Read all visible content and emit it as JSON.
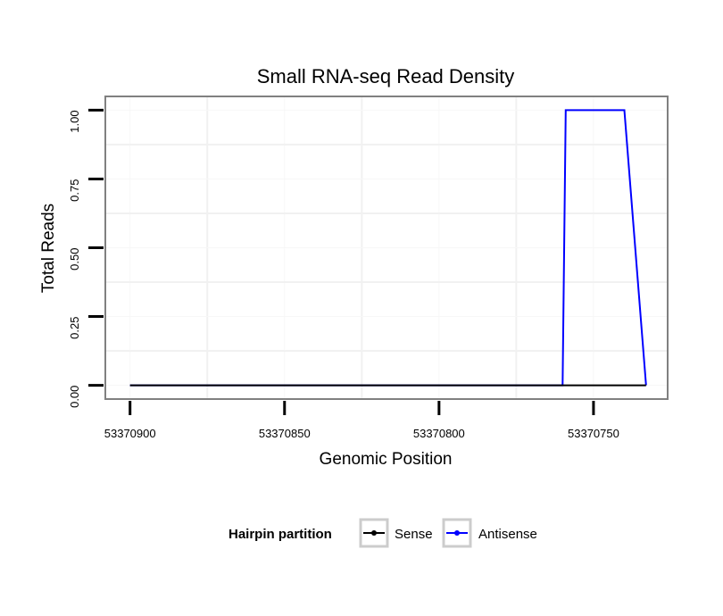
{
  "chart_data": {
    "type": "line",
    "title": "Small RNA-seq Read Density",
    "xlabel": "Genomic Position",
    "ylabel": "Total Reads",
    "x_reversed": true,
    "xlim": [
      53370908,
      53370726
    ],
    "ylim": [
      -0.05,
      1.05
    ],
    "x_ticks": [
      53370900,
      53370850,
      53370800,
      53370750
    ],
    "x_tick_labels": [
      "53370900",
      "53370850",
      "53370800",
      "53370750"
    ],
    "y_ticks": [
      0,
      0.25,
      0.5,
      0.75,
      1.0
    ],
    "y_tick_labels": [
      "0.00",
      "0.25",
      "0.50",
      "0.75",
      "1.00"
    ],
    "grid": true,
    "legend": {
      "title": "Hairpin partition",
      "position": "bottom",
      "entries": [
        "Sense",
        "Antisense"
      ]
    },
    "series": [
      {
        "name": "Sense",
        "color": "#000000",
        "x": [
          53370900,
          53370733
        ],
        "y": [
          0,
          0
        ]
      },
      {
        "name": "Antisense",
        "color": "#0000ff",
        "x": [
          53370900,
          53370760,
          53370759,
          53370740,
          53370733
        ],
        "y": [
          0,
          0,
          1,
          1,
          0
        ]
      }
    ]
  }
}
